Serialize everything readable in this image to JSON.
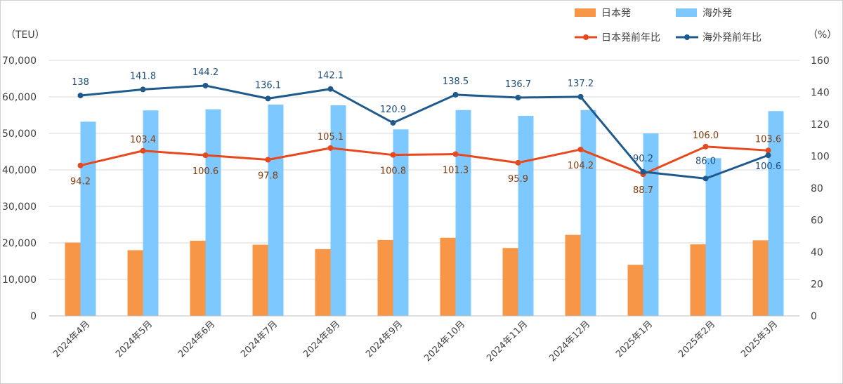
{
  "chart_data": {
    "type": "bar",
    "categories": [
      "2024年4月",
      "2024年5月",
      "2024年6月",
      "2024年7月",
      "2024年8月",
      "2024年9月",
      "2024年10月",
      "2024年11月",
      "2024年12月",
      "2025年1月",
      "2025年2月",
      "2025年3月"
    ],
    "series": [
      {
        "name": "日本発",
        "kind": "bar",
        "axis": "left",
        "color": "#f79646",
        "values": [
          20100,
          18000,
          20600,
          19500,
          18300,
          20800,
          21400,
          18600,
          22200,
          14000,
          19600,
          20700
        ]
      },
      {
        "name": "海外発",
        "kind": "bar",
        "axis": "left",
        "color": "#7cc8ff",
        "values": [
          53200,
          56300,
          56600,
          57900,
          57700,
          51100,
          56400,
          54800,
          56400,
          50000,
          43200,
          56100
        ]
      },
      {
        "name": "日本発前年比",
        "kind": "line",
        "axis": "right",
        "color": "#e8481e",
        "values": [
          94.2,
          103.4,
          100.6,
          97.8,
          105.1,
          100.8,
          101.3,
          95.9,
          104.2,
          88.7,
          106.0,
          103.6
        ]
      },
      {
        "name": "海外発前年比",
        "kind": "line",
        "axis": "right",
        "color": "#1f5a8c",
        "values": [
          138,
          141.8,
          144.2,
          136.1,
          142.1,
          120.9,
          138.5,
          136.7,
          137.2,
          90.2,
          86.0,
          100.6
        ]
      }
    ],
    "red_labels": [
      "94.2",
      "103.4",
      "100.6",
      "97.8",
      "105.1",
      "100.8",
      "101.3",
      "95.9",
      "104.2",
      "88.7",
      "106.0",
      "103.6"
    ],
    "blue_labels": [
      "138",
      "141.8",
      "144.2",
      "136.1",
      "142.1",
      "120.9",
      "138.5",
      "136.7",
      "137.2",
      "90.2",
      "86.0",
      "100.6"
    ],
    "ylim_left": [
      0,
      70000
    ],
    "ylim_right": [
      0,
      160
    ],
    "left_ticks": [
      "0",
      "10,000",
      "20,000",
      "30,000",
      "40,000",
      "50,000",
      "60,000",
      "70,000"
    ],
    "right_ticks": [
      "0",
      "20",
      "40",
      "60",
      "80",
      "100",
      "120",
      "140",
      "160"
    ],
    "ylabel_left": "（TEU）",
    "ylabel_right": "（%）",
    "grid": true,
    "legend_position": "top-right"
  }
}
